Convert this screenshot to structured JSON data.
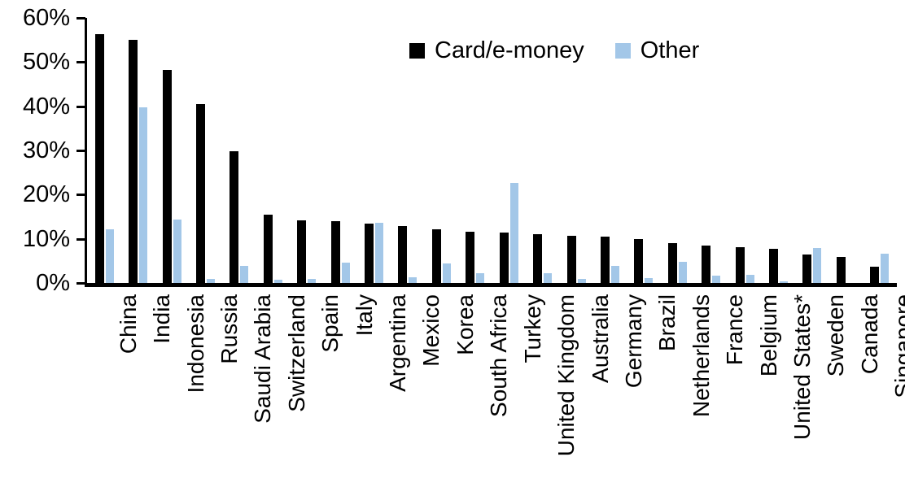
{
  "chart_data": {
    "type": "bar",
    "title": "",
    "categories": [
      "China",
      "India",
      "Indonesia",
      "Russia",
      "Saudi Arabia",
      "Switzerland",
      "Spain",
      "Italy",
      "Argentina",
      "Mexico",
      "Korea",
      "South Africa",
      "Turkey",
      "United Kingdom",
      "Australia",
      "Germany",
      "Brazil",
      "Netherlands",
      "France",
      "Belgium",
      "United States*",
      "Sweden",
      "Canada",
      "Singapore"
    ],
    "series": [
      {
        "name": "Card/e-money",
        "color": "#000000",
        "values": [
          56.3,
          55.0,
          48.2,
          40.4,
          29.8,
          15.5,
          14.1,
          14.0,
          13.4,
          12.8,
          12.2,
          11.6,
          11.5,
          11.0,
          10.7,
          10.5,
          9.9,
          9.1,
          8.5,
          8.1,
          7.8,
          6.5,
          5.9,
          3.7
        ]
      },
      {
        "name": "Other",
        "color": "#A3C7E8",
        "values": [
          12.2,
          39.7,
          14.4,
          0.9,
          3.8,
          0.7,
          1.0,
          4.6,
          13.7,
          1.2,
          4.4,
          2.3,
          22.6,
          2.3,
          1.0,
          3.8,
          1.1,
          4.7,
          1.6,
          1.9,
          0.4,
          8.0,
          0.0,
          6.6
        ]
      }
    ],
    "xlabel": "",
    "ylabel": "",
    "ylim": [
      0,
      60
    ],
    "ytick_step": 10,
    "ytick_labels": [
      "0%",
      "10%",
      "20%",
      "30%",
      "40%",
      "50%",
      "60%"
    ],
    "value_format": "percent",
    "grid": false,
    "legend_position": "top-center-inside"
  }
}
